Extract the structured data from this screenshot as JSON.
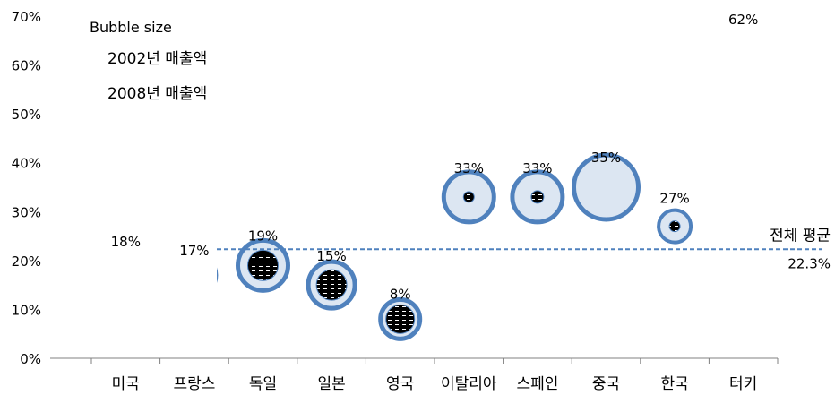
{
  "chart_data": {
    "type": "bubble",
    "title": "",
    "xlabel": "",
    "ylabel": "",
    "categories": [
      "미국",
      "프랑스",
      "독일",
      "일본",
      "영국",
      "이탈리아",
      "스페인",
      "중국",
      "한국",
      "터키"
    ],
    "y_ticks": [
      "0%",
      "10%",
      "20%",
      "30%",
      "40%",
      "50%",
      "60%",
      "70%"
    ],
    "ylim": [
      0,
      70
    ],
    "grid": false,
    "legend": {
      "title": "Bubble size",
      "items": [
        "2002년 매출액",
        "2008년 매출액"
      ],
      "position": "top-left"
    },
    "values": [
      18,
      17,
      19,
      15,
      8,
      33,
      33,
      35,
      27,
      62
    ],
    "value_labels": [
      "18%",
      "17%",
      "19%",
      "15%",
      "8%",
      "33%",
      "33%",
      "35%",
      "27%",
      "62%"
    ],
    "series": [
      {
        "name": "2008년 매출액",
        "values": [
          18,
          17,
          19,
          15,
          8,
          33,
          33,
          35,
          27,
          62
        ]
      },
      {
        "name": "2002년 매출액",
        "values": [
          18,
          17,
          19,
          15,
          8,
          33,
          33,
          35,
          27,
          62
        ]
      }
    ],
    "reference_line": {
      "label": "전체 평균",
      "value": 22.3,
      "value_label": "22.3%"
    },
    "colors": {
      "outer_ring": "#4f81bd",
      "outer_fill": "#dce6f2",
      "inner_fill": "#000000",
      "reference_line": "#4f81bd",
      "axis": "#808080"
    }
  }
}
